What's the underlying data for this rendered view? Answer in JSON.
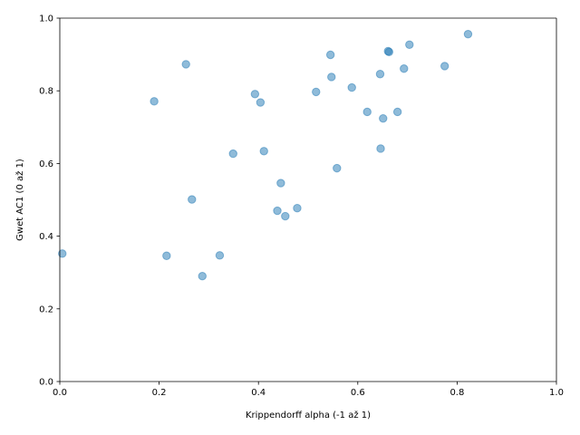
{
  "chart_data": {
    "type": "scatter",
    "xlabel": "Krippendorff alpha (-1 až 1)",
    "ylabel": "Gwet AC1 (0 až 1)",
    "xlim": [
      0.0,
      1.0
    ],
    "ylim": [
      0.0,
      1.0
    ],
    "xticks": [
      "0.0",
      "0.2",
      "0.4",
      "0.6",
      "0.8",
      "1.0"
    ],
    "yticks": [
      "0.0",
      "0.2",
      "0.4",
      "0.6",
      "0.8",
      "1.0"
    ],
    "grid": false,
    "marker_color": "#1f77b4",
    "marker_alpha": 0.5,
    "points": [
      {
        "x": 0.005,
        "y": 0.352
      },
      {
        "x": 0.19,
        "y": 0.771
      },
      {
        "x": 0.215,
        "y": 0.346
      },
      {
        "x": 0.254,
        "y": 0.873
      },
      {
        "x": 0.266,
        "y": 0.501
      },
      {
        "x": 0.287,
        "y": 0.29
      },
      {
        "x": 0.322,
        "y": 0.347
      },
      {
        "x": 0.349,
        "y": 0.627
      },
      {
        "x": 0.393,
        "y": 0.791
      },
      {
        "x": 0.404,
        "y": 0.768
      },
      {
        "x": 0.411,
        "y": 0.634
      },
      {
        "x": 0.438,
        "y": 0.47
      },
      {
        "x": 0.445,
        "y": 0.546
      },
      {
        "x": 0.454,
        "y": 0.455
      },
      {
        "x": 0.478,
        "y": 0.477
      },
      {
        "x": 0.516,
        "y": 0.797
      },
      {
        "x": 0.545,
        "y": 0.899
      },
      {
        "x": 0.547,
        "y": 0.838
      },
      {
        "x": 0.558,
        "y": 0.587
      },
      {
        "x": 0.588,
        "y": 0.809
      },
      {
        "x": 0.619,
        "y": 0.742
      },
      {
        "x": 0.645,
        "y": 0.846
      },
      {
        "x": 0.646,
        "y": 0.641
      },
      {
        "x": 0.651,
        "y": 0.724
      },
      {
        "x": 0.661,
        "y": 0.909
      },
      {
        "x": 0.663,
        "y": 0.907
      },
      {
        "x": 0.68,
        "y": 0.742
      },
      {
        "x": 0.693,
        "y": 0.861
      },
      {
        "x": 0.704,
        "y": 0.927
      },
      {
        "x": 0.775,
        "y": 0.868
      },
      {
        "x": 0.822,
        "y": 0.956
      }
    ]
  }
}
